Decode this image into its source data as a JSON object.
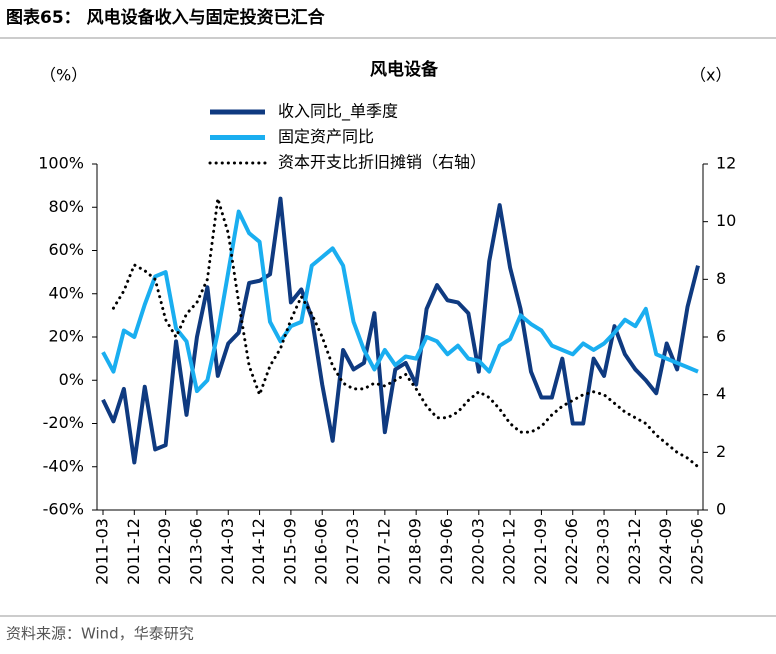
{
  "header": "图表65：  风电设备收入与固定投资已汇合",
  "source": "资料来源：Wind，华泰研究",
  "chart_data": {
    "type": "line",
    "title": "风电设备",
    "ylabel": "（%）",
    "y2label": "（x）",
    "categories": [
      "2011-03",
      null,
      null,
      "2011-12",
      null,
      null,
      "2012-09",
      null,
      null,
      "2013-06",
      null,
      null,
      "2014-03",
      null,
      null,
      "2014-12",
      null,
      null,
      "2015-09",
      null,
      null,
      "2016-06",
      null,
      null,
      "2017-03",
      null,
      null,
      "2017-12",
      null,
      null,
      "2018-09",
      null,
      null,
      "2019-06",
      null,
      null,
      "2020-03",
      null,
      null,
      "2020-12",
      null,
      null,
      "2021-09",
      null,
      null,
      "2022-06",
      null,
      null,
      "2023-03",
      null,
      null,
      "2023-12",
      null,
      null,
      "2024-09",
      null,
      null,
      "2025-06"
    ],
    "ylim": [
      -60,
      100
    ],
    "yticks": [
      {
        "value": -60,
        "label": "-60%"
      },
      {
        "value": -40,
        "label": "-40%"
      },
      {
        "value": -20,
        "label": "-20%"
      },
      {
        "value": 0,
        "label": "0%"
      },
      {
        "value": 20,
        "label": "20%"
      },
      {
        "value": 40,
        "label": "40%"
      },
      {
        "value": 60,
        "label": "60%"
      },
      {
        "value": 80,
        "label": "80%"
      },
      {
        "value": 100,
        "label": "100%"
      }
    ],
    "y2lim": [
      0,
      12
    ],
    "y2ticks": [
      0,
      2,
      4,
      6,
      8,
      10,
      12
    ],
    "series": [
      {
        "name": "收入同比_单季度",
        "color": "#0f3a80",
        "line_style": "solid",
        "values": [
          -9,
          -19,
          -4,
          -38,
          -3,
          -32,
          -30,
          18,
          -16,
          20,
          43,
          2,
          17,
          22,
          45,
          46,
          49,
          84,
          36,
          42,
          29,
          -2,
          -28,
          14,
          5,
          8,
          31,
          -24,
          5,
          8,
          -2,
          33,
          44,
          37,
          36,
          31,
          4,
          55,
          81,
          52,
          33,
          4,
          -8,
          -8,
          10,
          -20,
          -20,
          10,
          2,
          25,
          12,
          5,
          0,
          -6,
          17,
          5,
          34,
          53
        ]
      },
      {
        "name": "固定资产同比",
        "color": "#1aaef0",
        "line_style": "solid",
        "values": [
          13,
          4,
          23,
          20,
          35,
          48,
          50,
          24,
          18,
          -5,
          0,
          22,
          50,
          78,
          68,
          64,
          27,
          18,
          25,
          27,
          53,
          57,
          61,
          53,
          27,
          14,
          5,
          14,
          7,
          11,
          10,
          20,
          18,
          12,
          16,
          10,
          9,
          4,
          16,
          19,
          30,
          26,
          23,
          16,
          14,
          12,
          17,
          14,
          17,
          22,
          28,
          25,
          33,
          12,
          10,
          8,
          6,
          4
        ]
      },
      {
        "name": "资本开支比折旧摊销（右轴）",
        "color": "#000000",
        "line_style": "dotted",
        "axis": "y2",
        "values": [
          null,
          7.0,
          7.6,
          8.5,
          8.3,
          8.0,
          6.6,
          6.0,
          6.8,
          7.2,
          8.0,
          10.8,
          9.6,
          7.2,
          5.0,
          4.0,
          5.0,
          5.6,
          6.6,
          7.4,
          6.8,
          6.0,
          5.0,
          4.4,
          4.2,
          4.2,
          4.4,
          4.3,
          4.5,
          4.7,
          4.2,
          3.6,
          3.2,
          3.2,
          3.4,
          3.8,
          4.1,
          3.9,
          3.5,
          3.0,
          2.7,
          2.7,
          2.9,
          3.3,
          3.6,
          3.8,
          4.0,
          4.1,
          4.0,
          3.7,
          3.4,
          3.2,
          3.0,
          2.6,
          2.3,
          2.0,
          1.8,
          1.5
        ]
      }
    ]
  }
}
